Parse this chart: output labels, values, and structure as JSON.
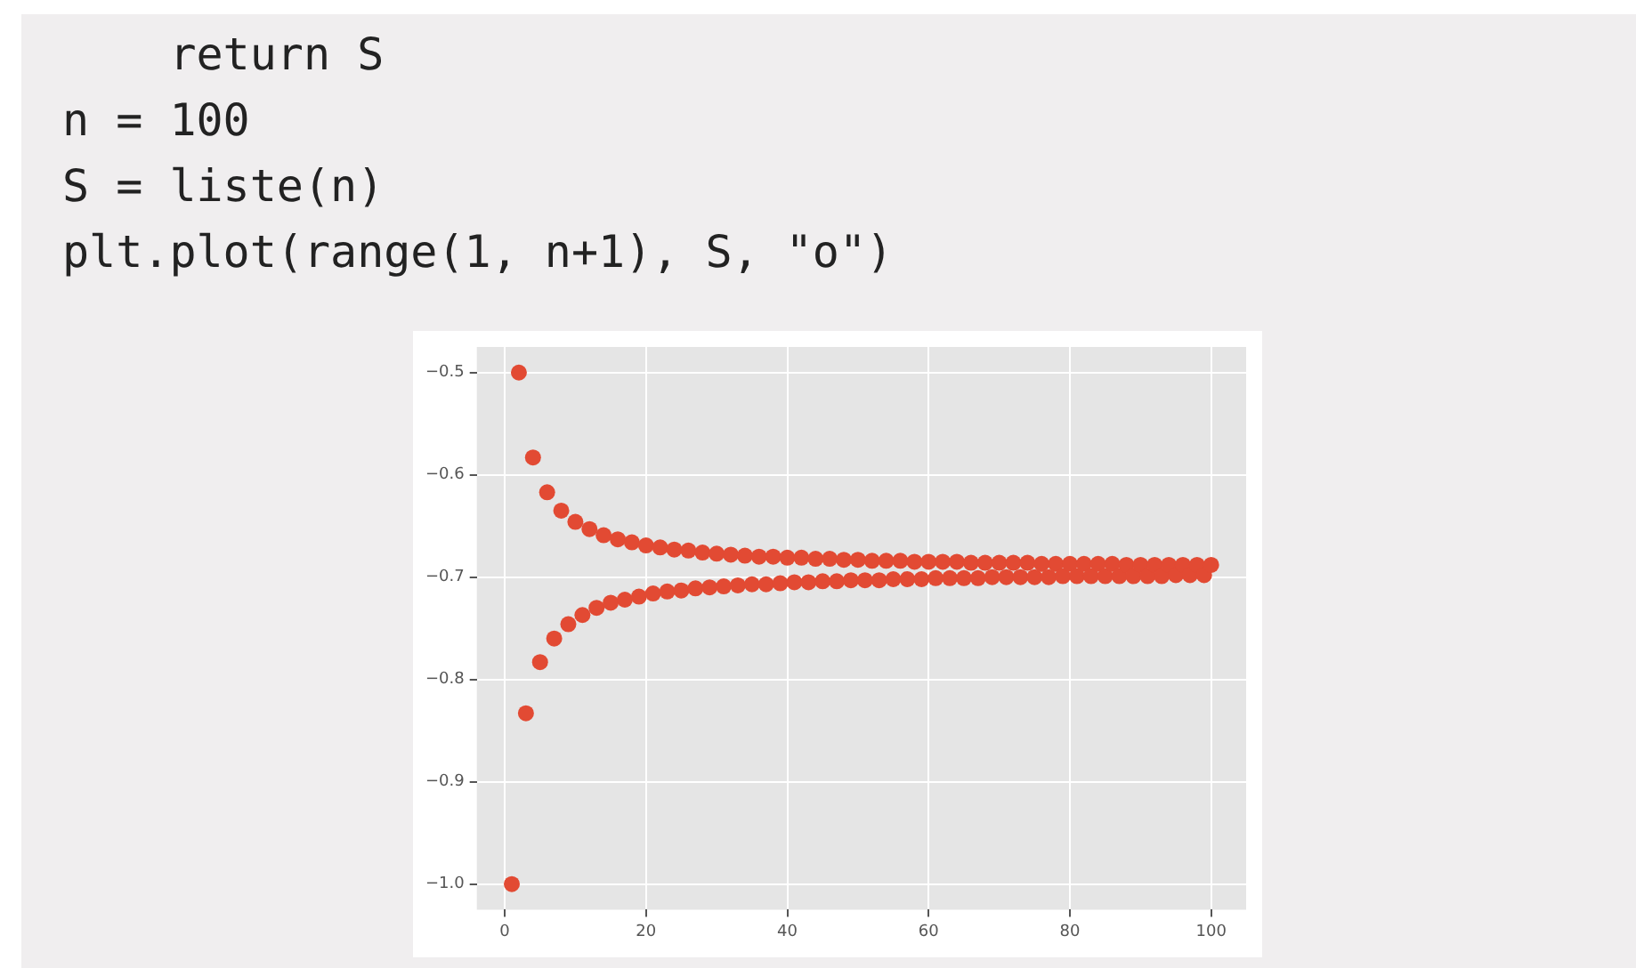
{
  "chart_data": {
    "type": "scatter",
    "annotations": [
      "    return S",
      "n = 100",
      "S = liste(n)",
      "plt.plot(range(1, n+1), S, \"o\")"
    ],
    "x": [
      1,
      2,
      3,
      4,
      5,
      6,
      7,
      8,
      9,
      10,
      11,
      12,
      13,
      14,
      15,
      16,
      17,
      18,
      19,
      20,
      21,
      22,
      23,
      24,
      25,
      26,
      27,
      28,
      29,
      30,
      31,
      32,
      33,
      34,
      35,
      36,
      37,
      38,
      39,
      40,
      41,
      42,
      43,
      44,
      45,
      46,
      47,
      48,
      49,
      50,
      51,
      52,
      53,
      54,
      55,
      56,
      57,
      58,
      59,
      60,
      61,
      62,
      63,
      64,
      65,
      66,
      67,
      68,
      69,
      70,
      71,
      72,
      73,
      74,
      75,
      76,
      77,
      78,
      79,
      80,
      81,
      82,
      83,
      84,
      85,
      86,
      87,
      88,
      89,
      90,
      91,
      92,
      93,
      94,
      95,
      96,
      97,
      98,
      99,
      100
    ],
    "series": [
      {
        "color": "#e24a33",
        "values": [
          -1,
          -0.5,
          -0.833,
          -0.583,
          -0.783,
          -0.617,
          -0.76,
          -0.635,
          -0.746,
          -0.646,
          -0.737,
          -0.653,
          -0.73,
          -0.659,
          -0.725,
          -0.663,
          -0.722,
          -0.666,
          -0.719,
          -0.669,
          -0.716,
          -0.671,
          -0.714,
          -0.673,
          -0.713,
          -0.674,
          -0.711,
          -0.676,
          -0.71,
          -0.677,
          -0.709,
          -0.678,
          -0.708,
          -0.679,
          -0.707,
          -0.68,
          -0.707,
          -0.68,
          -0.706,
          -0.681,
          -0.705,
          -0.681,
          -0.705,
          -0.682,
          -0.704,
          -0.682,
          -0.704,
          -0.683,
          -0.703,
          -0.683,
          -0.703,
          -0.684,
          -0.703,
          -0.684,
          -0.702,
          -0.684,
          -0.702,
          -0.685,
          -0.702,
          -0.685,
          -0.701,
          -0.685,
          -0.701,
          -0.685,
          -0.701,
          -0.686,
          -0.701,
          -0.686,
          -0.7,
          -0.686,
          -0.7,
          -0.686,
          -0.7,
          -0.686,
          -0.7,
          -0.687,
          -0.7,
          -0.687,
          -0.699,
          -0.687,
          -0.699,
          -0.687,
          -0.699,
          -0.687,
          -0.699,
          -0.687,
          -0.699,
          -0.688,
          -0.699,
          -0.688,
          -0.699,
          -0.688,
          -0.699,
          -0.688,
          -0.698,
          -0.688,
          -0.698,
          -0.688,
          -0.698,
          -0.688
        ]
      }
    ],
    "xlim": [
      -3.95,
      104.95
    ],
    "xticks": [
      0,
      20,
      40,
      60,
      80,
      100
    ],
    "ylim": [
      -1.025,
      -0.475
    ],
    "yticks": [
      {
        "value": -1,
        "label": "−1.0"
      },
      {
        "value": -0.9,
        "label": "−0.9"
      },
      {
        "value": -0.8,
        "label": "−0.8"
      },
      {
        "value": -0.7,
        "label": "−0.7"
      },
      {
        "value": -0.6,
        "label": "−0.6"
      },
      {
        "value": -0.5,
        "label": "−0.5"
      }
    ],
    "grid": true,
    "marker": "circle",
    "legend": false
  }
}
